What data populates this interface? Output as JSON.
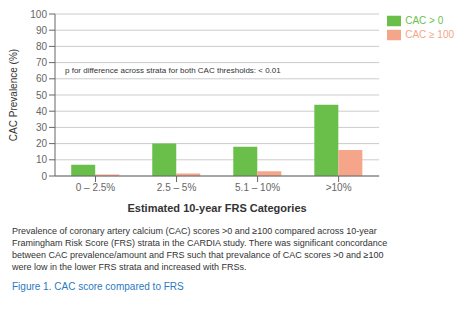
{
  "chart_data": {
    "type": "bar",
    "categories": [
      "0 – 2.5%",
      "2.5 – 5%",
      "5.1 – 10%",
      ">10%"
    ],
    "series": [
      {
        "name": "CAC > 0",
        "color": "#6abf4b",
        "values": [
          7,
          20,
          18,
          44
        ]
      },
      {
        "name": "CAC ≥ 100",
        "color": "#f4a58a",
        "values": [
          1,
          1.5,
          3,
          16
        ]
      }
    ],
    "xlabel": "Estimated 10-year FRS Categories",
    "ylabel": "CAC Prevalence (%)",
    "ylim": [
      0,
      100
    ],
    "yticks": [
      0,
      10,
      20,
      30,
      40,
      50,
      60,
      70,
      80,
      90,
      100
    ],
    "grid": true,
    "legend": "upper right",
    "annotations": [
      "p for difference across strata for both CAC thresholds: < 0.01"
    ],
    "caption": "Prevalence of coronary artery calcium (CAC) scores >0 and ≥100 compared across 10-year\nFramingham Risk Score (FRS) strata in the CARDIA study. There was significant concordance\nbetween CAC prevalence/amount and FRS such that prevalance of CAC scores >0 and ≥100\nwere low in the lower FRS strata and increased with FRSs.",
    "figure_label": "Figure 1. CAC score compared to FRS"
  }
}
